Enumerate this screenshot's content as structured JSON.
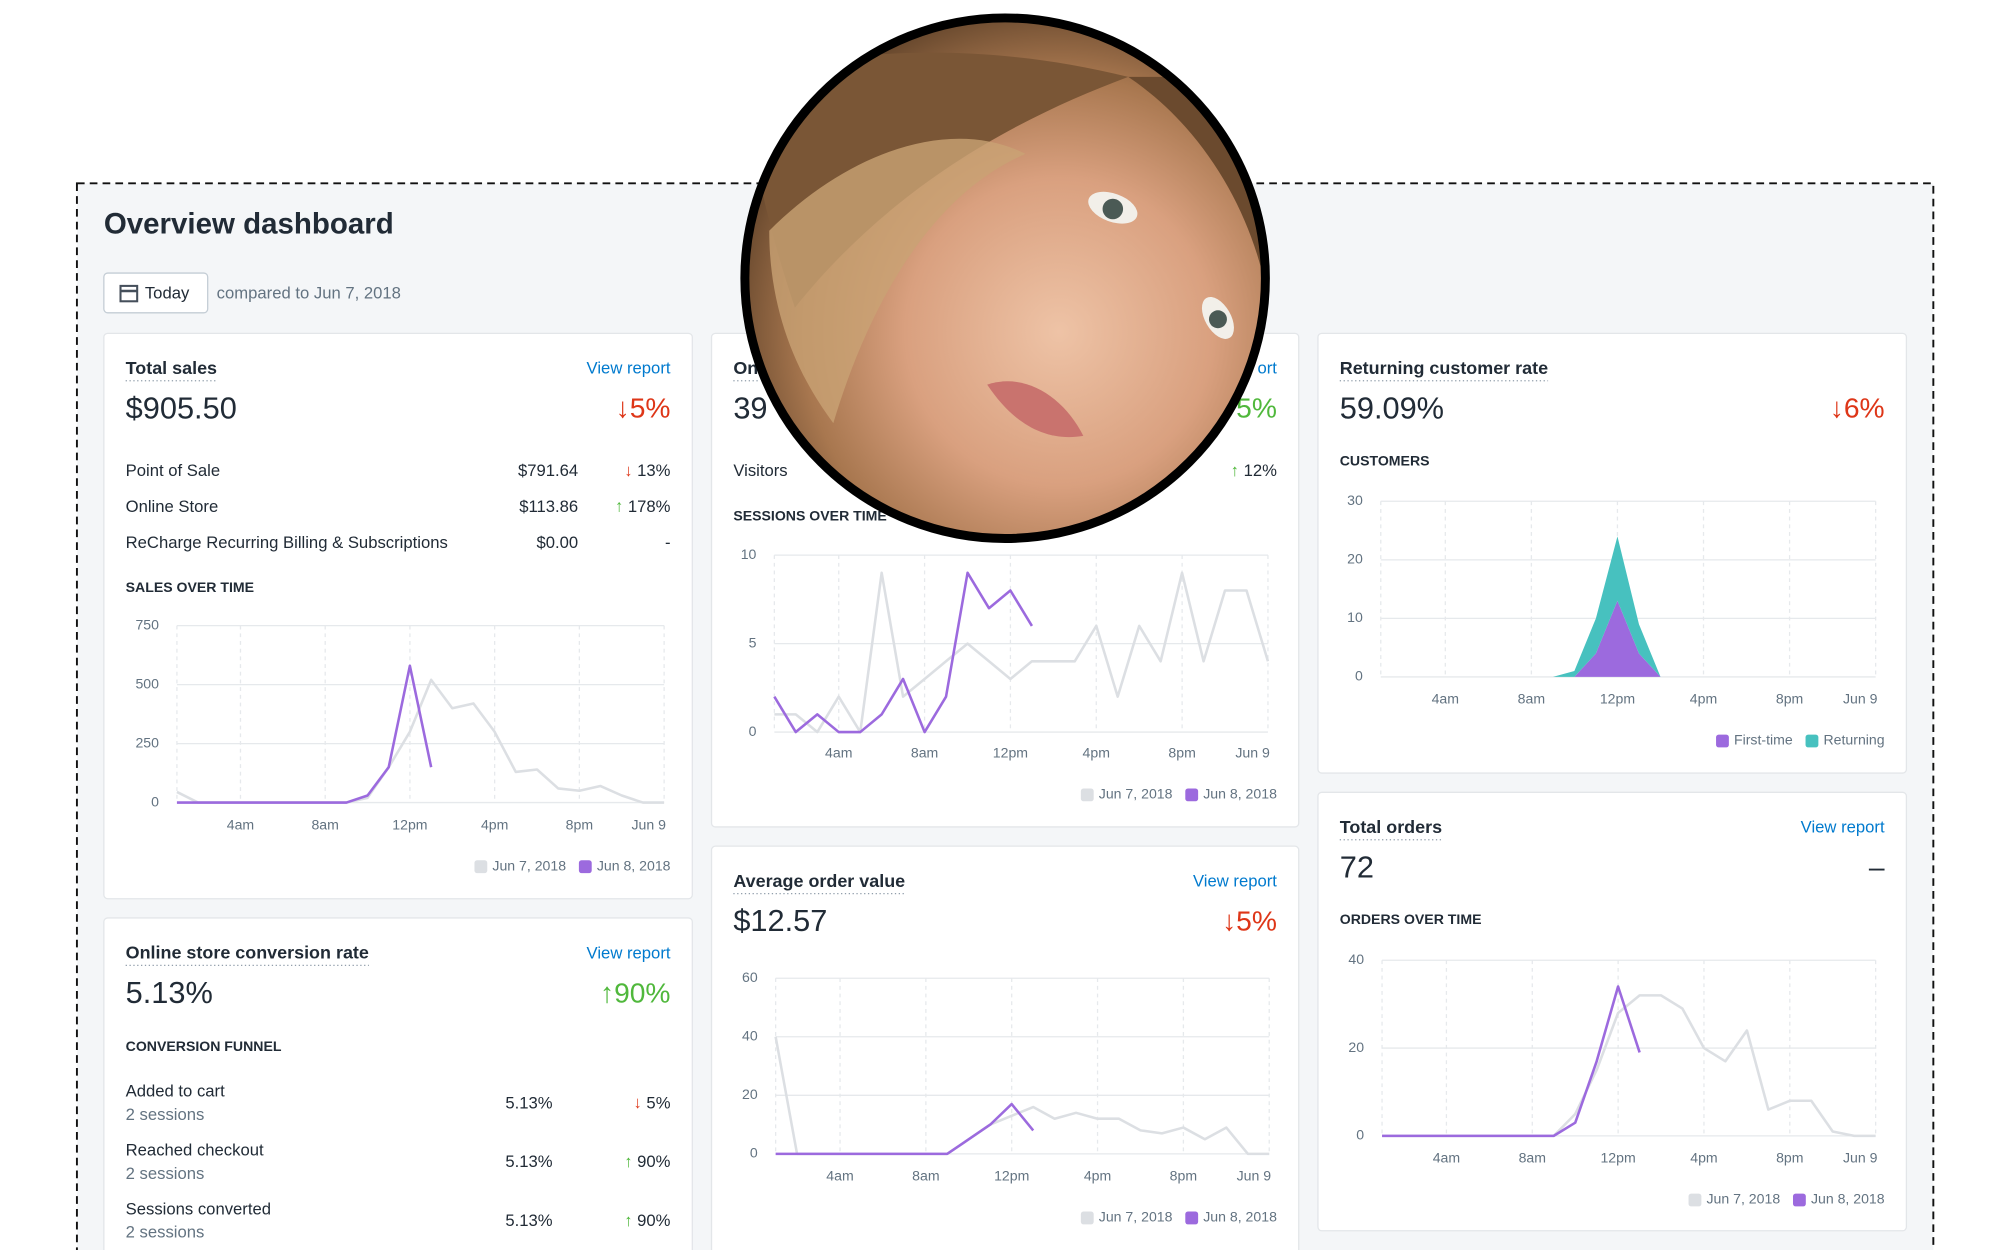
{
  "header": {
    "title": "Overview dashboard",
    "date_button": "Today",
    "comparison": "compared to Jun 7, 2018"
  },
  "cards": [
    {
      "title": "Total sales",
      "link": "View report",
      "value": "$905.50",
      "change": "↓5%",
      "change_color": "#de3618",
      "rows": [
        {
          "label": "Point of Sale",
          "amount": "$791.64",
          "change": "↓ 13%"
        },
        {
          "label": "Online Store",
          "amount": "$113.86",
          "change": "↑ 178%"
        },
        {
          "label": "ReCharge Recurring Billing & Subscriptions",
          "amount": "$0.00",
          "change": "-"
        }
      ],
      "chart_label": "SALES OVER TIME",
      "chart": {
        "type": "line",
        "x": [
          1,
          2,
          3,
          4,
          5,
          6,
          7,
          8,
          9,
          10,
          11,
          12,
          13,
          14,
          15,
          16,
          17,
          18,
          19,
          20,
          21,
          22,
          23,
          24
        ],
        "xlim": [
          1,
          24
        ],
        "xticks": [
          {
            "value": 4,
            "label": "4am"
          },
          {
            "value": 8,
            "label": "8am"
          },
          {
            "value": 12,
            "label": "12pm"
          },
          {
            "value": 16,
            "label": "4pm"
          },
          {
            "value": 20,
            "label": "8pm"
          },
          {
            "value": 24,
            "label": "Jun 9"
          }
        ],
        "ylim": [
          0,
          750
        ],
        "yticks": [
          0,
          250,
          500,
          750
        ],
        "grid": true,
        "series": [
          {
            "name": "Jun 7, 2018",
            "color": "#dcdfe3",
            "values": [
              45,
              0,
              0,
              0,
              0,
              0,
              0,
              0,
              0,
              20,
              150,
              300,
              520,
              400,
              420,
              300,
              130,
              140,
              60,
              50,
              70,
              30,
              0,
              0
            ]
          },
          {
            "name": "Jun 8, 2018",
            "color": "#9c6ade",
            "values": [
              0,
              0,
              0,
              0,
              0,
              0,
              0,
              0,
              0,
              30,
              150,
              580,
              150,
              null,
              null,
              null,
              null,
              null,
              null,
              null,
              null,
              null,
              null,
              null
            ]
          }
        ]
      }
    },
    {
      "title": "Online store conversion rate",
      "link": "View report",
      "value": "5.13%",
      "change": "↑90%",
      "change_color": "#50b83c",
      "chart_label": "CONVERSION FUNNEL",
      "funnel": [
        {
          "label": "Added to cart",
          "sub": "2 sessions",
          "rate": "5.13%",
          "change": "↓ 5%"
        },
        {
          "label": "Reached checkout",
          "sub": "2 sessions",
          "rate": "5.13%",
          "change": "↑ 90%"
        },
        {
          "label": "Sessions converted",
          "sub": "2 sessions",
          "rate": "5.13%",
          "change": "↑ 90%"
        }
      ]
    },
    {
      "title": "On",
      "link": "ort",
      "value": "39",
      "change": "5%",
      "change_color": "#50b83c",
      "rows": [
        {
          "label": "Visitors",
          "change": "↑ 12%"
        }
      ],
      "chart_label": "SESSIONS OVER TIME",
      "chart": {
        "type": "line",
        "x": [
          1,
          2,
          3,
          4,
          5,
          6,
          7,
          8,
          9,
          10,
          11,
          12,
          13,
          14,
          15,
          16,
          17,
          18,
          19,
          20,
          21,
          22,
          23,
          24
        ],
        "xlim": [
          1,
          24
        ],
        "xticks": [
          {
            "value": 4,
            "label": "4am"
          },
          {
            "value": 8,
            "label": "8am"
          },
          {
            "value": 12,
            "label": "12pm"
          },
          {
            "value": 16,
            "label": "4pm"
          },
          {
            "value": 20,
            "label": "8pm"
          },
          {
            "value": 24,
            "label": "Jun 9"
          }
        ],
        "ylim": [
          0,
          10
        ],
        "yticks": [
          0,
          5,
          10
        ],
        "grid": true,
        "series": [
          {
            "name": "Jun 7, 2018",
            "color": "#dcdfe3",
            "values": [
              1,
              1,
              0,
              2,
              0,
              9,
              2,
              3,
              4,
              5,
              4,
              3,
              4,
              4,
              4,
              6,
              2,
              6,
              4,
              9,
              4,
              8,
              8,
              4
            ]
          },
          {
            "name": "Jun 8, 2018",
            "color": "#9c6ade",
            "values": [
              2,
              0,
              1,
              0,
              0,
              1,
              3,
              0,
              2,
              9,
              7,
              8,
              6,
              null,
              null,
              null,
              null,
              null,
              null,
              null,
              null,
              null,
              null,
              null
            ]
          }
        ]
      }
    },
    {
      "title": "Average order value",
      "link": "View report",
      "value": "$12.57",
      "change": "↓5%",
      "change_color": "#de3618",
      "chart": {
        "type": "line",
        "x": [
          1,
          2,
          3,
          4,
          5,
          6,
          7,
          8,
          9,
          10,
          11,
          12,
          13,
          14,
          15,
          16,
          17,
          18,
          19,
          20,
          21,
          22,
          23,
          24
        ],
        "xlim": [
          1,
          24
        ],
        "xticks": [
          {
            "value": 4,
            "label": "4am"
          },
          {
            "value": 8,
            "label": "8am"
          },
          {
            "value": 12,
            "label": "12pm"
          },
          {
            "value": 16,
            "label": "4pm"
          },
          {
            "value": 20,
            "label": "8pm"
          },
          {
            "value": 24,
            "label": "Jun 9"
          }
        ],
        "ylim": [
          0,
          60
        ],
        "yticks": [
          0,
          20,
          40,
          60
        ],
        "grid": true,
        "series": [
          {
            "name": "Jun 7, 2018",
            "color": "#dcdfe3",
            "values": [
              40,
              0,
              0,
              0,
              0,
              0,
              0,
              0,
              0,
              5,
              10,
              13,
              16,
              12,
              14,
              12,
              12,
              8,
              7,
              9,
              5,
              9,
              0,
              0
            ]
          },
          {
            "name": "Jun 8, 2018",
            "color": "#9c6ade",
            "values": [
              0,
              0,
              0,
              0,
              0,
              0,
              0,
              0,
              0,
              5,
              10,
              17,
              8,
              null,
              null,
              null,
              null,
              null,
              null,
              null,
              null,
              null,
              null,
              null
            ]
          }
        ]
      }
    },
    {
      "title": "Returning customer rate",
      "value": "59.09%",
      "change": "↓6%",
      "change_color": "#de3618",
      "chart_label": "CUSTOMERS",
      "chart": {
        "type": "area",
        "stacked": true,
        "x": [
          1,
          2,
          3,
          4,
          5,
          6,
          7,
          8,
          9,
          10,
          11,
          12,
          13,
          14,
          15,
          16,
          17,
          18,
          19,
          20,
          21,
          22,
          23,
          24
        ],
        "xlim": [
          1,
          24
        ],
        "xticks": [
          {
            "value": 4,
            "label": "4am"
          },
          {
            "value": 8,
            "label": "8am"
          },
          {
            "value": 12,
            "label": "12pm"
          },
          {
            "value": 16,
            "label": "4pm"
          },
          {
            "value": 20,
            "label": "8pm"
          },
          {
            "value": 24,
            "label": "Jun 9"
          }
        ],
        "ylim": [
          0,
          30
        ],
        "yticks": [
          0,
          10,
          20,
          30
        ],
        "grid": true,
        "series": [
          {
            "name": "First-time",
            "color": "#9c6ade",
            "values": [
              0,
              0,
              0,
              0,
              0,
              0,
              0,
              0,
              0,
              0,
              4,
              13,
              4,
              0,
              0,
              0,
              0,
              0,
              0,
              0,
              0,
              0,
              0,
              0
            ]
          },
          {
            "name": "Returning",
            "color": "#47c1bf",
            "values": [
              0,
              0,
              0,
              0,
              0,
              0,
              0,
              0,
              0,
              1,
              6,
              11,
              5,
              0,
              0,
              0,
              0,
              0,
              0,
              0,
              0,
              0,
              0,
              0
            ]
          }
        ]
      }
    },
    {
      "title": "Total orders",
      "link": "View report",
      "value": "72",
      "change": "–",
      "change_color": "#212b36",
      "chart_label": "ORDERS OVER TIME",
      "chart": {
        "type": "line",
        "x": [
          1,
          2,
          3,
          4,
          5,
          6,
          7,
          8,
          9,
          10,
          11,
          12,
          13,
          14,
          15,
          16,
          17,
          18,
          19,
          20,
          21,
          22,
          23,
          24
        ],
        "xlim": [
          1,
          24
        ],
        "xticks": [
          {
            "value": 4,
            "label": "4am"
          },
          {
            "value": 8,
            "label": "8am"
          },
          {
            "value": 12,
            "label": "12pm"
          },
          {
            "value": 16,
            "label": "4pm"
          },
          {
            "value": 20,
            "label": "8pm"
          },
          {
            "value": 24,
            "label": "Jun 9"
          }
        ],
        "ylim": [
          0,
          40
        ],
        "yticks": [
          0,
          20,
          40
        ],
        "grid": true,
        "series": [
          {
            "name": "Jun 7, 2018",
            "color": "#dcdfe3",
            "values": [
              0,
              0,
              0,
              0,
              0,
              0,
              0,
              0,
              0,
              5,
              15,
              28,
              32,
              32,
              29,
              20,
              17,
              24,
              6,
              8,
              8,
              1,
              0,
              0
            ]
          },
          {
            "name": "Jun 8, 2018",
            "color": "#9c6ade",
            "values": [
              0,
              0,
              0,
              0,
              0,
              0,
              0,
              0,
              0,
              3,
              17,
              34,
              19,
              null,
              null,
              null,
              null,
              null,
              null,
              null,
              null,
              null,
              null,
              null
            ]
          }
        ]
      }
    }
  ]
}
